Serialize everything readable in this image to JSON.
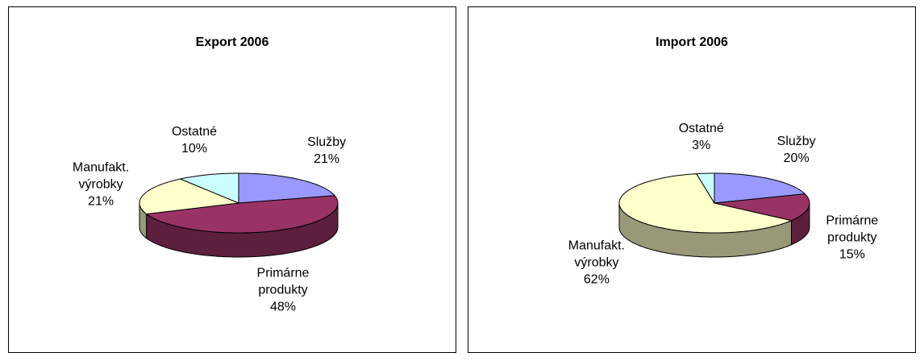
{
  "chart_data": [
    {
      "type": "pie",
      "title": "Export 2006",
      "categories": [
        "Služby",
        "Primárne produkty",
        "Manufakt. výrobky",
        "Ostatné"
      ],
      "values": [
        21,
        48,
        21,
        10
      ],
      "value_labels": [
        "21%",
        "48%",
        "21%",
        "10%"
      ],
      "colors": [
        "#9999ff",
        "#993366",
        "#ffffcc",
        "#ccffff"
      ]
    },
    {
      "type": "pie",
      "title": "Import 2006",
      "categories": [
        "Služby",
        "Primárne produkty",
        "Manufakt. výrobky",
        "Ostatné"
      ],
      "values": [
        20,
        15,
        62,
        3
      ],
      "value_labels": [
        "20%",
        "15%",
        "62%",
        "3%"
      ],
      "colors": [
        "#9999ff",
        "#993366",
        "#ffffcc",
        "#ccffff"
      ]
    }
  ]
}
